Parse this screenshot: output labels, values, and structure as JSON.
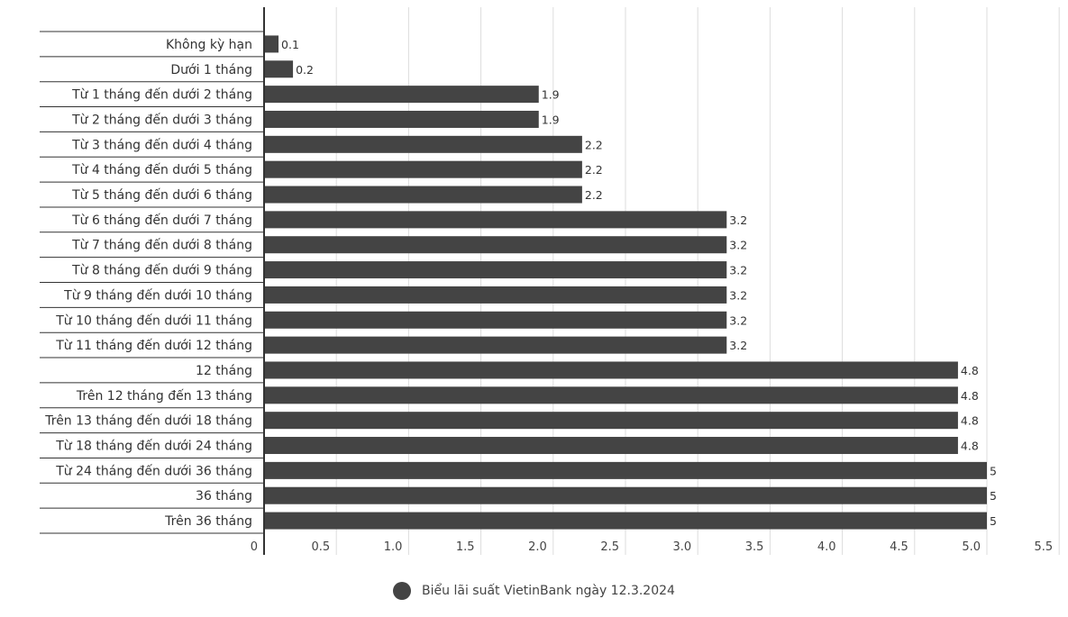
{
  "chart_data": {
    "type": "bar",
    "orientation": "horizontal",
    "categories": [
      "Không kỳ hạn",
      "Dưới 1 tháng",
      "Từ 1 tháng đến dưới 2 tháng",
      "Từ 2 tháng đến dưới 3 tháng",
      "Từ 3 tháng đến dưới 4 tháng",
      "Từ 4 tháng đến dưới 5 tháng",
      "Từ 5 tháng đến dưới 6 tháng",
      "Từ 6 tháng đến dưới 7 tháng",
      "Từ 7 tháng đến dưới 8 tháng",
      "Từ 8 tháng đến dưới 9 tháng",
      "Từ 9 tháng đến dưới 10 tháng",
      "Từ 10 tháng đến dưới 11 tháng",
      "Từ 11 tháng đến dưới 12 tháng",
      "12 tháng",
      "Trên 12 tháng đến 13 tháng",
      "Trên 13 tháng đến dưới 18 tháng",
      "Từ 18 tháng đến dưới 24 tháng",
      "Từ 24 tháng đến dưới 36 tháng",
      "36 tháng",
      "Trên 36 tháng"
    ],
    "series": [
      {
        "name": "Biểu lãi suất VietinBank ngày 12.3.2024",
        "values": [
          0.1,
          0.2,
          1.9,
          1.9,
          2.2,
          2.2,
          2.2,
          3.2,
          3.2,
          3.2,
          3.2,
          3.2,
          3.2,
          4.8,
          4.8,
          4.8,
          4.8,
          5,
          5,
          5
        ],
        "value_labels": [
          "0.1",
          "0.2",
          "1.9",
          "1.9",
          "2.2",
          "2.2",
          "2.2",
          "3.2",
          "3.2",
          "3.2",
          "3.2",
          "3.2",
          "3.2",
          "4.8",
          "4.8",
          "4.8",
          "4.8",
          "5",
          "5",
          "5"
        ]
      }
    ],
    "x_ticks": [
      0,
      0.5,
      1.0,
      1.5,
      2.0,
      2.5,
      3.0,
      3.5,
      4.0,
      4.5,
      5.0,
      5.5
    ],
    "x_tick_labels": [
      "0",
      "0.5",
      "1.0",
      "1.5",
      "2.0",
      "2.5",
      "3.0",
      "3.5",
      "4.0",
      "4.5",
      "5.0",
      "5.5"
    ],
    "xlim": [
      0,
      5.5
    ],
    "title": "",
    "xlabel": "",
    "ylabel": "",
    "grid": true,
    "legend_position": "bottom-center"
  },
  "colors": {
    "bar": "#444444",
    "grid": "#dddddd",
    "axis": "#333333",
    "row_divider": "#333333"
  },
  "legend": {
    "label": "Biểu lãi suất VietinBank ngày 12.3.2024"
  }
}
